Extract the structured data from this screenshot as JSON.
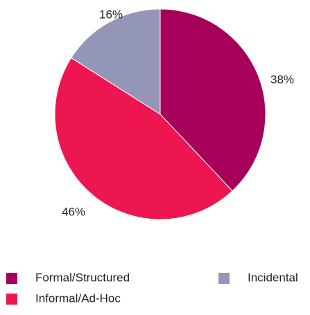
{
  "chart_data": {
    "type": "pie",
    "slices": [
      {
        "label": "Formal/Structured",
        "value": 38,
        "display": "38%",
        "color": "#a6005a"
      },
      {
        "label": "Informal/Ad-Hoc",
        "value": 46,
        "display": "46%",
        "color": "#ee1651"
      },
      {
        "label": "Incidental",
        "value": 16,
        "display": "16%",
        "color": "#9496b8"
      }
    ],
    "start_angle_deg": 0,
    "direction": "clockwise",
    "legend_position": "bottom"
  }
}
